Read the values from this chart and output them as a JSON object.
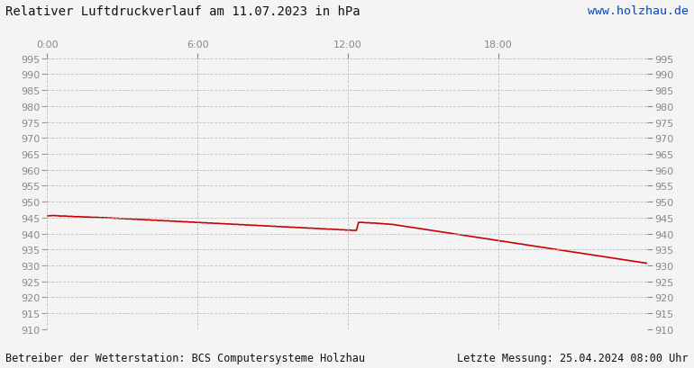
{
  "title": "Relativer Luftdruckverlauf am 11.07.2023 in hPa",
  "watermark": "www.holzhau.de",
  "footer_left": "Betreiber der Wetterstation: BCS Computersysteme Holzhau",
  "footer_right": "Letzte Messung: 25.04.2024 08:00 Uhr",
  "ylim": [
    910,
    995
  ],
  "ytick_step": 5,
  "xlim": [
    0,
    287
  ],
  "xtick_positions": [
    0,
    72,
    144,
    216
  ],
  "xtick_labels": [
    "0:00",
    "6:00",
    "12:00",
    "18:00"
  ],
  "line_color": "#cc0000",
  "line_width": 1.2,
  "background_color": "#f4f4f4",
  "grid_color": "#bbbbbb",
  "title_fontsize": 10,
  "tick_fontsize": 8,
  "footer_fontsize": 8.5,
  "watermark_fontsize": 9.5,
  "pressure_data": [
    945.5,
    945.6,
    945.6,
    945.7,
    945.6,
    945.6,
    945.5,
    945.5,
    945.5,
    945.5,
    945.4,
    945.4,
    945.4,
    945.3,
    945.3,
    945.3,
    945.3,
    945.2,
    945.2,
    945.2,
    945.2,
    945.1,
    945.1,
    945.1,
    945.1,
    945.0,
    945.0,
    945.0,
    945.0,
    944.9,
    944.9,
    944.9,
    944.8,
    944.8,
    944.8,
    944.7,
    944.7,
    944.7,
    944.6,
    944.6,
    944.6,
    944.5,
    944.5,
    944.5,
    944.4,
    944.4,
    944.4,
    944.3,
    944.3,
    944.3,
    944.2,
    944.2,
    944.2,
    944.1,
    944.1,
    944.1,
    944.0,
    944.0,
    944.0,
    943.9,
    943.9,
    943.9,
    943.8,
    943.8,
    943.8,
    943.7,
    943.7,
    943.7,
    943.6,
    943.6,
    943.6,
    943.5,
    943.5,
    943.5,
    943.4,
    943.4,
    943.4,
    943.3,
    943.3,
    943.3,
    943.2,
    943.2,
    943.2,
    943.1,
    943.1,
    943.1,
    943.0,
    943.0,
    943.0,
    942.9,
    942.9,
    942.9,
    942.8,
    942.8,
    942.8,
    942.7,
    942.7,
    942.7,
    942.6,
    942.6,
    942.6,
    942.5,
    942.5,
    942.5,
    942.4,
    942.4,
    942.4,
    942.3,
    942.3,
    942.3,
    942.2,
    942.2,
    942.2,
    942.1,
    942.1,
    942.1,
    942.0,
    942.0,
    942.0,
    941.9,
    941.9,
    941.9,
    941.8,
    941.8,
    941.8,
    941.7,
    941.7,
    941.7,
    941.6,
    941.6,
    941.6,
    941.5,
    941.5,
    941.5,
    941.4,
    941.4,
    941.4,
    941.3,
    941.3,
    941.3,
    941.2,
    941.2,
    941.2,
    941.1,
    941.1,
    941.1,
    941.0,
    941.0,
    941.0,
    943.5,
    943.5,
    943.5,
    943.4,
    943.4,
    943.4,
    943.3,
    943.3,
    943.3,
    943.2,
    943.2,
    943.1,
    943.1,
    943.0,
    943.0,
    942.9,
    942.9,
    942.8,
    942.7,
    942.6,
    942.5,
    942.4,
    942.3,
    942.2,
    942.1,
    942.0,
    941.9,
    941.8,
    941.7,
    941.6,
    941.5,
    941.4,
    941.3,
    941.2,
    941.1,
    941.0,
    940.9,
    940.8,
    940.7,
    940.6,
    940.5,
    940.4,
    940.3,
    940.2,
    940.1,
    940.0,
    939.9,
    939.8,
    939.7,
    939.6,
    939.5,
    939.4,
    939.3,
    939.2,
    939.1,
    939.0,
    938.9,
    938.8,
    938.7,
    938.6,
    938.5,
    938.4,
    938.3,
    938.2,
    938.1,
    938.0,
    937.9,
    937.8,
    937.7,
    937.6,
    937.5,
    937.4,
    937.3,
    937.2,
    937.1,
    937.0,
    936.9,
    936.8,
    936.7,
    936.6,
    936.5,
    936.4,
    936.3,
    936.2,
    936.1,
    936.0,
    935.9,
    935.8,
    935.7,
    935.6,
    935.5,
    935.4,
    935.3,
    935.2,
    935.1,
    935.0,
    934.9,
    934.8,
    934.7,
    934.6,
    934.5,
    934.4,
    934.3,
    934.2,
    934.1,
    934.0,
    933.9,
    933.8,
    933.7,
    933.6,
    933.5,
    933.4,
    933.3,
    933.2,
    933.1,
    933.0,
    932.9,
    932.8,
    932.7,
    932.6,
    932.5,
    932.4,
    932.3,
    932.2,
    932.1,
    932.0,
    931.9,
    931.8,
    931.7,
    931.6,
    931.5,
    931.4,
    931.3,
    931.2,
    931.1,
    931.0,
    930.9,
    930.8,
    930.7
  ]
}
